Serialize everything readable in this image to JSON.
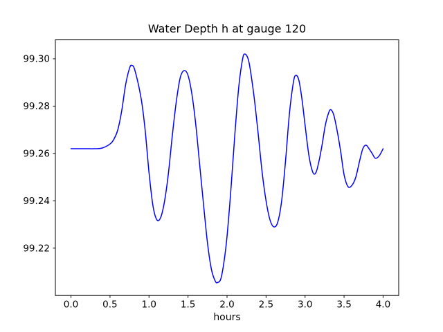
{
  "figure": {
    "background_color": "#ffffff",
    "frame_color": "#000000"
  },
  "chart_data": {
    "type": "line",
    "title": "Water Depth h at gauge 120",
    "xlabel": "hours",
    "ylabel": "",
    "xlim": [
      -0.2,
      4.2
    ],
    "ylim": [
      99.2,
      99.308
    ],
    "grid": false,
    "legend": "none",
    "line_color": "#0000ff",
    "line_width": 1.5,
    "xtick_values": [
      0.0,
      0.5,
      1.0,
      1.5,
      2.0,
      2.5,
      3.0,
      3.5,
      4.0
    ],
    "xtick_labels": [
      "0.0",
      "0.5",
      "1.0",
      "1.5",
      "2.0",
      "2.5",
      "3.0",
      "3.5",
      "4.0"
    ],
    "ytick_values": [
      99.22,
      99.24,
      99.26,
      99.28,
      99.3
    ],
    "ytick_labels": [
      "99.22",
      "99.24",
      "99.26",
      "99.28",
      "99.30"
    ],
    "points": [
      [
        0.0,
        99.262
      ],
      [
        0.1,
        99.262
      ],
      [
        0.2,
        99.262
      ],
      [
        0.3,
        99.262
      ],
      [
        0.4,
        99.2623
      ],
      [
        0.5,
        99.264
      ],
      [
        0.55,
        99.266
      ],
      [
        0.6,
        99.27
      ],
      [
        0.65,
        99.278
      ],
      [
        0.7,
        99.289
      ],
      [
        0.75,
        99.296
      ],
      [
        0.78,
        99.2972
      ],
      [
        0.82,
        99.295
      ],
      [
        0.9,
        99.283
      ],
      [
        0.95,
        99.27
      ],
      [
        1.0,
        99.252
      ],
      [
        1.05,
        99.238
      ],
      [
        1.1,
        99.232
      ],
      [
        1.15,
        99.233
      ],
      [
        1.2,
        99.24
      ],
      [
        1.25,
        99.252
      ],
      [
        1.3,
        99.268
      ],
      [
        1.35,
        99.282
      ],
      [
        1.4,
        99.292
      ],
      [
        1.45,
        99.295
      ],
      [
        1.5,
        99.293
      ],
      [
        1.55,
        99.285
      ],
      [
        1.6,
        99.272
      ],
      [
        1.65,
        99.255
      ],
      [
        1.7,
        99.238
      ],
      [
        1.75,
        99.222
      ],
      [
        1.8,
        99.211
      ],
      [
        1.85,
        99.206
      ],
      [
        1.88,
        99.2055
      ],
      [
        1.92,
        99.207
      ],
      [
        1.96,
        99.214
      ],
      [
        2.0,
        99.225
      ],
      [
        2.05,
        99.245
      ],
      [
        2.1,
        99.268
      ],
      [
        2.15,
        99.288
      ],
      [
        2.2,
        99.3
      ],
      [
        2.23,
        99.302
      ],
      [
        2.27,
        99.3
      ],
      [
        2.3,
        99.295
      ],
      [
        2.35,
        99.283
      ],
      [
        2.4,
        99.268
      ],
      [
        2.45,
        99.252
      ],
      [
        2.5,
        99.24
      ],
      [
        2.55,
        99.232
      ],
      [
        2.6,
        99.229
      ],
      [
        2.65,
        99.231
      ],
      [
        2.7,
        99.24
      ],
      [
        2.75,
        99.257
      ],
      [
        2.8,
        99.277
      ],
      [
        2.85,
        99.29
      ],
      [
        2.88,
        99.293
      ],
      [
        2.92,
        99.291
      ],
      [
        2.96,
        99.283
      ],
      [
        3.0,
        99.272
      ],
      [
        3.05,
        99.259
      ],
      [
        3.1,
        99.252
      ],
      [
        3.14,
        99.252
      ],
      [
        3.18,
        99.257
      ],
      [
        3.22,
        99.264
      ],
      [
        3.26,
        99.272
      ],
      [
        3.3,
        99.277
      ],
      [
        3.33,
        99.2785
      ],
      [
        3.37,
        99.276
      ],
      [
        3.42,
        99.268
      ],
      [
        3.46,
        99.26
      ],
      [
        3.5,
        99.251
      ],
      [
        3.55,
        99.246
      ],
      [
        3.6,
        99.2465
      ],
      [
        3.65,
        99.25
      ],
      [
        3.7,
        99.257
      ],
      [
        3.74,
        99.262
      ],
      [
        3.78,
        99.2635
      ],
      [
        3.82,
        99.262
      ],
      [
        3.86,
        99.26
      ],
      [
        3.9,
        99.258
      ],
      [
        3.95,
        99.259
      ],
      [
        4.0,
        99.262
      ]
    ]
  }
}
